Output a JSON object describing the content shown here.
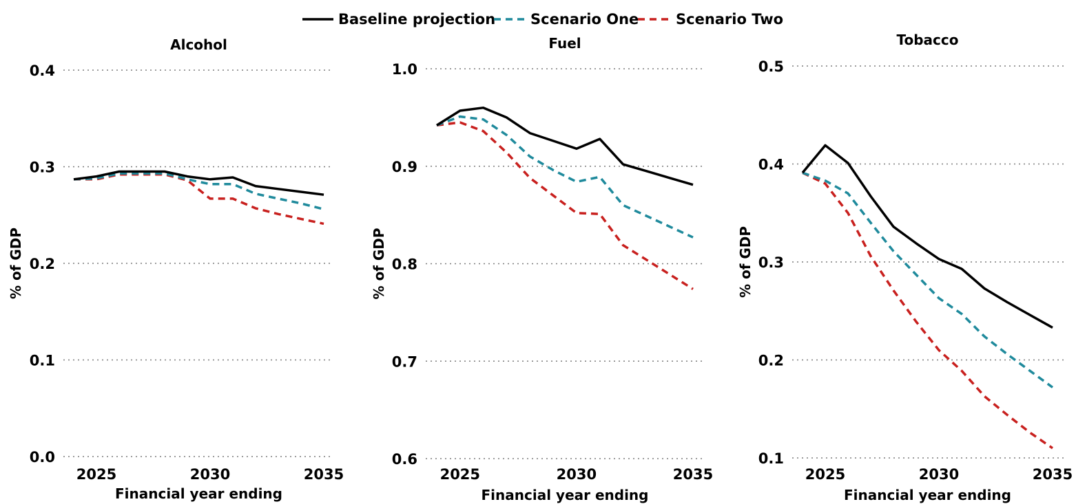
{
  "legend": [
    {
      "name": "Baseline projection",
      "color": "#000000",
      "style": "solid"
    },
    {
      "name": "Scenario One",
      "color": "#1f8a9c",
      "style": "dashed"
    },
    {
      "name": "Scenario Two",
      "color": "#c8201e",
      "style": "dashed"
    }
  ],
  "chart_data": [
    {
      "type": "line",
      "title": "Alcohol",
      "xlabel": "Financial year ending",
      "ylabel": "% of GDP",
      "x": [
        2024,
        2025,
        2026,
        2027,
        2028,
        2029,
        2030,
        2031,
        2032,
        2033,
        2034,
        2035
      ],
      "xticks": [
        2025,
        2030,
        2035
      ],
      "ylim": [
        0.0,
        0.4
      ],
      "yticks": [
        "0.0",
        "0.1",
        "0.2",
        "0.3",
        "0.4"
      ],
      "grid": true,
      "series": [
        {
          "name": "Baseline projection",
          "values": [
            0.287,
            0.29,
            0.295,
            0.295,
            0.295,
            0.29,
            0.287,
            0.289,
            0.28,
            0.277,
            0.274,
            0.271
          ]
        },
        {
          "name": "Scenario One",
          "values": [
            0.287,
            0.288,
            0.293,
            0.293,
            0.293,
            0.287,
            0.282,
            0.282,
            0.272,
            0.267,
            0.262,
            0.256
          ]
        },
        {
          "name": "Scenario Two",
          "values": [
            0.287,
            0.287,
            0.292,
            0.292,
            0.292,
            0.286,
            0.267,
            0.267,
            0.257,
            0.251,
            0.246,
            0.241
          ]
        }
      ]
    },
    {
      "type": "line",
      "title": "Fuel",
      "xlabel": "Financial year ending",
      "ylabel": "% of GDP",
      "x": [
        2024,
        2025,
        2026,
        2027,
        2028,
        2029,
        2030,
        2031,
        2032,
        2033,
        2034,
        2035
      ],
      "xticks": [
        2025,
        2030,
        2035
      ],
      "ylim": [
        0.6,
        1.0
      ],
      "yticks": [
        "0.6",
        "0.7",
        "0.8",
        "0.9",
        "1.0"
      ],
      "grid": true,
      "series": [
        {
          "name": "Baseline projection",
          "values": [
            0.942,
            0.957,
            0.96,
            0.95,
            0.934,
            0.926,
            0.918,
            0.928,
            0.902,
            0.895,
            0.888,
            0.881
          ]
        },
        {
          "name": "Scenario One",
          "values": [
            0.942,
            0.951,
            0.948,
            0.932,
            0.91,
            0.896,
            0.884,
            0.889,
            0.86,
            0.849,
            0.838,
            0.827
          ]
        },
        {
          "name": "Scenario Two",
          "values": [
            0.942,
            0.945,
            0.936,
            0.914,
            0.888,
            0.87,
            0.852,
            0.851,
            0.819,
            0.804,
            0.789,
            0.774
          ]
        }
      ]
    },
    {
      "type": "line",
      "title": "Tobacco",
      "xlabel": "Financial year ending",
      "ylabel": "% of GDP",
      "x": [
        2024,
        2025,
        2026,
        2027,
        2028,
        2029,
        2030,
        2031,
        2032,
        2033,
        2034,
        2035
      ],
      "xticks": [
        2025,
        2030,
        2035
      ],
      "ylim": [
        0.1,
        0.5
      ],
      "yticks": [
        "0.1",
        "0.2",
        "0.3",
        "0.4",
        "0.5"
      ],
      "grid": true,
      "series": [
        {
          "name": "Baseline projection",
          "values": [
            0.391,
            0.419,
            0.401,
            0.367,
            0.336,
            0.319,
            0.303,
            0.293,
            0.273,
            0.259,
            0.246,
            0.233
          ]
        },
        {
          "name": "Scenario One",
          "values": [
            0.391,
            0.383,
            0.37,
            0.34,
            0.311,
            0.287,
            0.263,
            0.247,
            0.224,
            0.206,
            0.189,
            0.172
          ]
        },
        {
          "name": "Scenario Two",
          "values": [
            0.391,
            0.38,
            0.35,
            0.306,
            0.271,
            0.239,
            0.21,
            0.189,
            0.163,
            0.144,
            0.126,
            0.11
          ]
        }
      ]
    }
  ]
}
